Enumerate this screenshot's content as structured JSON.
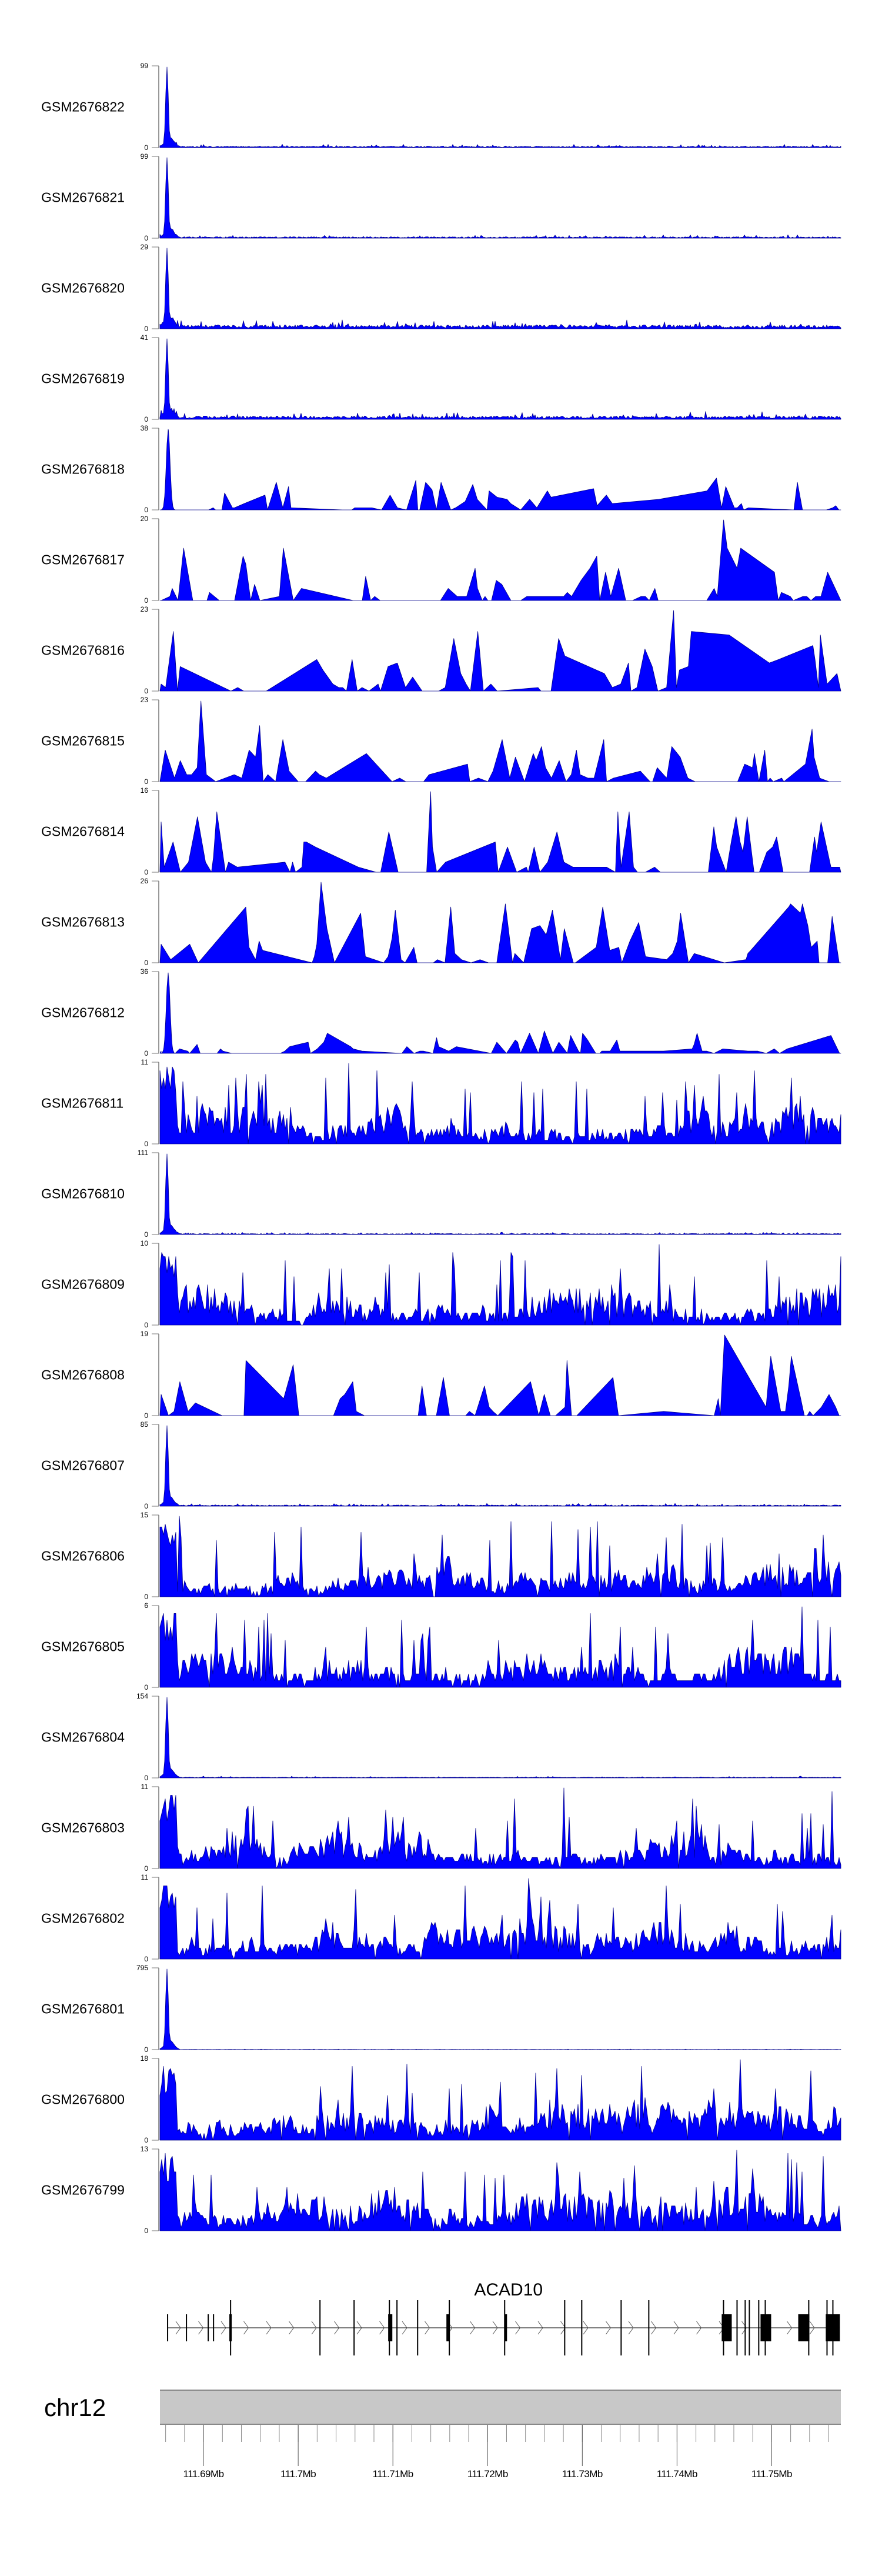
{
  "chart_data": {
    "type": "area",
    "title": "",
    "xlabel": "",
    "ylabel": "",
    "xlim_mb": [
      111.6854,
      111.7573
    ],
    "grid": false,
    "fill_color": "#0000ff",
    "outline_color": "#00008b",
    "tracks": [
      {
        "name": "GSM2676822",
        "ymin": 0,
        "ymax": 99,
        "profile": "peak",
        "baseline": 0.03,
        "seed": 1
      },
      {
        "name": "GSM2676821",
        "ymin": 0,
        "ymax": 99,
        "profile": "peak",
        "baseline": 0.03,
        "seed": 2
      },
      {
        "name": "GSM2676820",
        "ymin": 0,
        "ymax": 29,
        "profile": "peak",
        "baseline": 0.08,
        "seed": 3
      },
      {
        "name": "GSM2676819",
        "ymin": 0,
        "ymax": 41,
        "profile": "peak",
        "baseline": 0.07,
        "seed": 4
      },
      {
        "name": "GSM2676818",
        "ymin": 0,
        "ymax": 38,
        "profile": "peak-sparse",
        "baseline": 0.3,
        "seed": 5
      },
      {
        "name": "GSM2676817",
        "ymin": 0,
        "ymax": 20,
        "profile": "sparse",
        "seed": 6
      },
      {
        "name": "GSM2676816",
        "ymin": 0,
        "ymax": 23,
        "profile": "sparse",
        "seed": 7
      },
      {
        "name": "GSM2676815",
        "ymin": 0,
        "ymax": 23,
        "profile": "sparse",
        "seed": 8
      },
      {
        "name": "GSM2676814",
        "ymin": 0,
        "ymax": 16,
        "profile": "sparse",
        "seed": 9
      },
      {
        "name": "GSM2676813",
        "ymin": 0,
        "ymax": 26,
        "profile": "sparse",
        "seed": 10
      },
      {
        "name": "GSM2676812",
        "ymin": 0,
        "ymax": 36,
        "profile": "peak-sparse",
        "baseline": 0.2,
        "seed": 11
      },
      {
        "name": "GSM2676811",
        "ymin": 0,
        "ymax": 11,
        "profile": "dense",
        "seed": 12
      },
      {
        "name": "GSM2676810",
        "ymin": 0,
        "ymax": 111,
        "profile": "peak",
        "baseline": 0.02,
        "seed": 13
      },
      {
        "name": "GSM2676809",
        "ymin": 0,
        "ymax": 10,
        "profile": "dense",
        "seed": 14
      },
      {
        "name": "GSM2676808",
        "ymin": 0,
        "ymax": 19,
        "profile": "sparse",
        "seed": 15
      },
      {
        "name": "GSM2676807",
        "ymin": 0,
        "ymax": 85,
        "profile": "peak",
        "baseline": 0.025,
        "seed": 16
      },
      {
        "name": "GSM2676806",
        "ymin": 0,
        "ymax": 15,
        "profile": "dense",
        "seed": 17
      },
      {
        "name": "GSM2676805",
        "ymin": 0,
        "ymax": 6,
        "profile": "dense",
        "seed": 18
      },
      {
        "name": "GSM2676804",
        "ymin": 0,
        "ymax": 154,
        "profile": "peak",
        "baseline": 0.015,
        "seed": 19
      },
      {
        "name": "GSM2676803",
        "ymin": 0,
        "ymax": 11,
        "profile": "dense",
        "seed": 20
      },
      {
        "name": "GSM2676802",
        "ymin": 0,
        "ymax": 11,
        "profile": "dense",
        "seed": 21
      },
      {
        "name": "GSM2676801",
        "ymin": 0,
        "ymax": 795,
        "profile": "peak",
        "baseline": 0.004,
        "seed": 22
      },
      {
        "name": "GSM2676800",
        "ymin": 0,
        "ymax": 18,
        "profile": "dense",
        "seed": 23
      },
      {
        "name": "GSM2676799",
        "ymin": 0,
        "ymax": 13,
        "profile": "dense",
        "seed": 24
      }
    ],
    "gene": {
      "name": "ACAD10",
      "strand": "+",
      "start_mb": 111.68621,
      "end_mb": 111.7572,
      "tall_exon_marks_mb": [
        111.69286,
        111.7023,
        111.7059,
        111.70963,
        111.71043,
        111.71261,
        111.71596,
        111.7218,
        111.72814,
        111.72994,
        111.7341,
        111.73702,
        111.74491,
        111.74634,
        111.7472,
        111.74764,
        111.74863,
        111.74932,
        111.75391,
        111.75584,
        111.75646
      ],
      "short_exon_marks_mb": [
        111.68621,
        111.6882,
        111.6905,
        111.69106
      ],
      "exon_blocks_mb": [
        [
          111.69273,
          111.69298
        ],
        [
          111.7095,
          111.70994
        ],
        [
          111.71565,
          111.71596
        ],
        [
          111.7218,
          111.72205
        ],
        [
          111.74472,
          111.74578
        ],
        [
          111.74882,
          111.74994
        ],
        [
          111.7528,
          111.75398
        ],
        [
          111.75571,
          111.7572
        ]
      ]
    },
    "chromosome": "chr12",
    "xaxis": {
      "minor_tick_step_mb": 0.002,
      "major_ticks_mb": [
        111.69,
        111.7,
        111.71,
        111.72,
        111.73,
        111.74,
        111.75
      ],
      "tick_labels": [
        "111.69Mb",
        "111.7Mb",
        "111.71Mb",
        "111.72Mb",
        "111.73Mb",
        "111.74Mb",
        "111.75Mb"
      ]
    }
  }
}
